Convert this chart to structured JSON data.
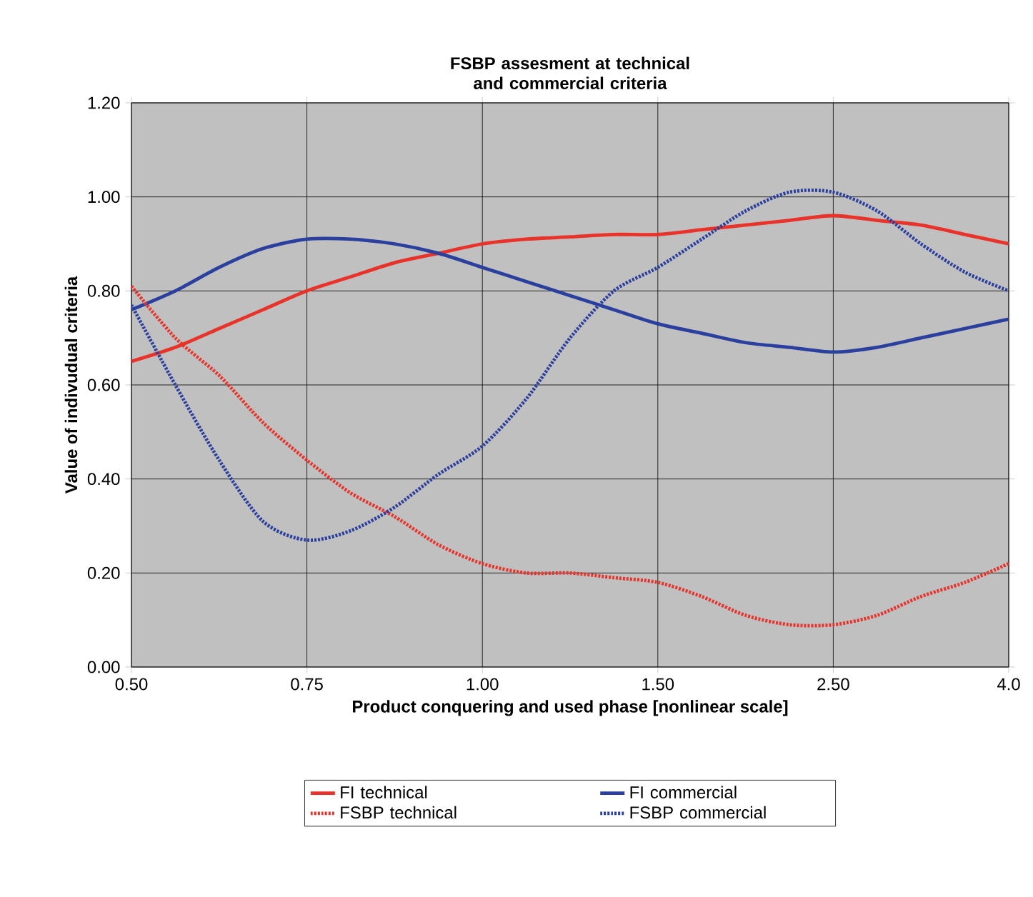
{
  "chart_data": {
    "type": "line",
    "title": "FSBP assesment at technical and commercial criteria",
    "xlabel": "Product conquering and used phase [nonlinear scale]",
    "ylabel": "Value of indivudual criteria",
    "categories": [
      "0.50",
      null,
      null,
      null,
      "0.75",
      null,
      null,
      null,
      "1.00",
      null,
      null,
      null,
      "1.50",
      null,
      null,
      null,
      "2.50",
      null,
      null,
      null,
      "4.0"
    ],
    "series": [
      {
        "name": "FI technical",
        "color": "#e8322a",
        "line_style": "solid",
        "values": [
          0.65,
          0.68,
          0.72,
          0.76,
          0.8,
          0.83,
          0.86,
          0.88,
          0.9,
          0.91,
          0.915,
          0.92,
          0.92,
          0.93,
          0.94,
          0.95,
          0.96,
          0.95,
          0.94,
          0.92,
          0.9
        ]
      },
      {
        "name": "FI commercial",
        "color": "#2b3f9e",
        "line_style": "solid",
        "values": [
          0.76,
          0.8,
          0.85,
          0.89,
          0.91,
          0.91,
          0.9,
          0.88,
          0.85,
          0.82,
          0.79,
          0.76,
          0.73,
          0.71,
          0.69,
          0.68,
          0.67,
          0.68,
          0.7,
          0.72,
          0.74
        ]
      },
      {
        "name": "FSBP technical",
        "color": "#e8322a",
        "line_style": "dashed",
        "values": [
          0.81,
          0.7,
          0.62,
          0.52,
          0.44,
          0.37,
          0.32,
          0.26,
          0.22,
          0.2,
          0.2,
          0.19,
          0.18,
          0.15,
          0.11,
          0.09,
          0.09,
          0.11,
          0.15,
          0.18,
          0.22
        ]
      },
      {
        "name": "FSBP commercial",
        "color": "#2b3f9e",
        "line_style": "dashed",
        "values": [
          0.77,
          0.6,
          0.44,
          0.31,
          0.27,
          0.29,
          0.34,
          0.41,
          0.47,
          0.57,
          0.7,
          0.8,
          0.85,
          0.91,
          0.97,
          1.01,
          1.01,
          0.97,
          0.9,
          0.84,
          0.8
        ]
      }
    ],
    "ylim": [
      0,
      1.2
    ],
    "yticks": [
      {
        "value": 0,
        "label": "0.00"
      },
      {
        "value": 0.2,
        "label": "0.20"
      },
      {
        "value": 0.4,
        "label": "0.40"
      },
      {
        "value": 0.6,
        "label": "0.60"
      },
      {
        "value": 0.8,
        "label": "0.80"
      },
      {
        "value": 1.0,
        "label": "1.00"
      },
      {
        "value": 1.2,
        "label": "1.20"
      }
    ],
    "grid": true,
    "legend": "bottom",
    "marker": "none"
  }
}
